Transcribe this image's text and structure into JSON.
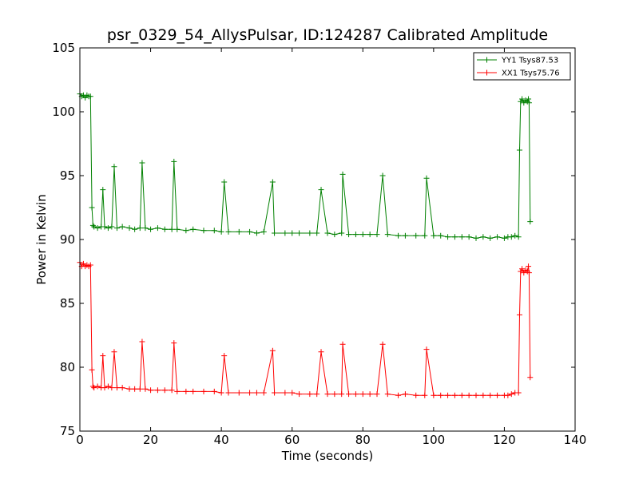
{
  "chart_data": {
    "type": "line",
    "title": "psr_0329_54_AllysPulsar, ID:124287 Calibrated Amplitude",
    "xlabel": "Time (seconds)",
    "ylabel": "Power in Kelvin",
    "xlim": [
      0,
      140
    ],
    "ylim": [
      75,
      105
    ],
    "xticks": [
      0,
      20,
      40,
      60,
      80,
      100,
      120,
      140
    ],
    "xtick_labels": [
      "0",
      "20",
      "40",
      "60",
      "80",
      "100",
      "120",
      "140"
    ],
    "yticks": [
      75,
      80,
      85,
      90,
      95,
      100,
      105
    ],
    "ytick_labels": [
      "75",
      "80",
      "85",
      "90",
      "95",
      "100",
      "105"
    ],
    "grid": false,
    "legend_position": "top-right",
    "marker": "+",
    "series": [
      {
        "name": "YY1 Tsys87.53",
        "color": "#008000",
        "x": [
          0,
          0.5,
          1,
          1.5,
          2,
          2.5,
          3,
          3.4,
          3.7,
          4,
          5,
          6,
          6.5,
          7,
          8,
          9,
          9.7,
          10.5,
          12,
          14,
          15.5,
          17,
          17.6,
          18.5,
          20,
          22,
          24,
          26,
          26.6,
          27.5,
          30,
          32,
          35,
          38,
          40,
          40.8,
          42,
          45,
          48,
          50,
          52,
          54.5,
          55,
          58,
          60,
          62,
          65,
          67,
          68.2,
          70,
          72,
          74,
          74.3,
          76,
          78,
          80,
          82,
          84,
          85.6,
          87,
          90,
          92,
          95,
          97.5,
          98,
          100,
          102,
          104,
          106,
          108,
          110,
          112,
          114,
          116,
          118,
          120,
          121,
          122,
          123,
          124,
          124.3,
          124.6,
          125,
          125.5,
          126,
          126.5,
          126.8,
          127,
          127.3
        ],
        "y": [
          101.4,
          101.2,
          101.3,
          101.1,
          101.3,
          101.2,
          101.2,
          92.5,
          91.1,
          91.0,
          90.9,
          91.0,
          93.9,
          91.0,
          90.9,
          91.0,
          95.7,
          90.9,
          91.0,
          90.9,
          90.8,
          90.9,
          96.0,
          90.9,
          90.8,
          90.9,
          90.8,
          90.8,
          96.1,
          90.8,
          90.7,
          90.8,
          90.7,
          90.7,
          90.6,
          94.5,
          90.6,
          90.6,
          90.6,
          90.5,
          90.6,
          94.5,
          90.5,
          90.5,
          90.5,
          90.5,
          90.5,
          90.5,
          93.9,
          90.5,
          90.4,
          90.5,
          95.1,
          90.4,
          90.4,
          90.4,
          90.4,
          90.4,
          95.0,
          90.4,
          90.3,
          90.3,
          90.3,
          90.3,
          94.8,
          90.3,
          90.3,
          90.2,
          90.2,
          90.2,
          90.2,
          90.1,
          90.2,
          90.1,
          90.2,
          90.1,
          90.2,
          90.2,
          90.3,
          90.2,
          97.0,
          100.8,
          101.0,
          100.7,
          100.9,
          100.8,
          101.0,
          100.7,
          91.4
        ]
      },
      {
        "name": "XX1 Tsys75.76",
        "color": "#ff0000",
        "x": [
          0,
          0.5,
          1,
          1.5,
          2,
          2.5,
          3,
          3.4,
          3.7,
          4,
          5,
          6,
          6.5,
          7,
          8,
          9,
          9.7,
          10.5,
          12,
          14,
          15.5,
          17,
          17.6,
          18.5,
          20,
          22,
          24,
          26,
          26.6,
          27.5,
          30,
          32,
          35,
          38,
          40,
          40.8,
          42,
          45,
          48,
          50,
          52,
          54.5,
          55,
          58,
          60,
          62,
          65,
          67,
          68.2,
          70,
          72,
          74,
          74.3,
          76,
          78,
          80,
          82,
          84,
          85.6,
          87,
          90,
          92,
          95,
          97.5,
          98,
          100,
          102,
          104,
          106,
          108,
          110,
          112,
          114,
          116,
          118,
          120,
          121,
          122,
          123,
          124,
          124.3,
          124.6,
          125,
          125.5,
          126,
          126.5,
          126.8,
          127,
          127.3
        ],
        "y": [
          88.2,
          87.9,
          88.1,
          87.9,
          88.0,
          87.9,
          88.0,
          79.8,
          78.5,
          78.4,
          78.5,
          78.4,
          80.9,
          78.4,
          78.5,
          78.4,
          81.2,
          78.4,
          78.4,
          78.3,
          78.3,
          78.3,
          82.0,
          78.3,
          78.2,
          78.2,
          78.2,
          78.2,
          81.9,
          78.1,
          78.1,
          78.1,
          78.1,
          78.1,
          78.0,
          80.9,
          78.0,
          78.0,
          78.0,
          78.0,
          78.0,
          81.3,
          78.0,
          78.0,
          78.0,
          77.9,
          77.9,
          77.9,
          81.2,
          77.9,
          77.9,
          77.9,
          81.8,
          77.9,
          77.9,
          77.9,
          77.9,
          77.9,
          81.8,
          77.9,
          77.8,
          77.9,
          77.8,
          77.8,
          81.4,
          77.8,
          77.8,
          77.8,
          77.8,
          77.8,
          77.8,
          77.8,
          77.8,
          77.8,
          77.8,
          77.8,
          77.8,
          77.9,
          78.0,
          78.0,
          84.1,
          87.5,
          87.7,
          87.4,
          87.6,
          87.5,
          87.9,
          87.4,
          79.2
        ]
      }
    ]
  }
}
